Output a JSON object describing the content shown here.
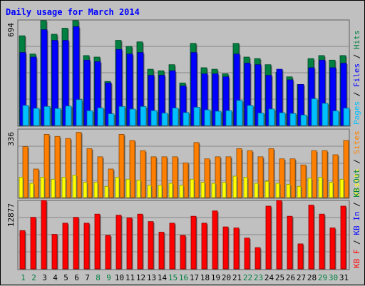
{
  "chart_data": {
    "type": "bar",
    "title": "Daily usage for March 2014",
    "days": [
      "1",
      "2",
      "3",
      "4",
      "5",
      "6",
      "7",
      "8",
      "9",
      "10",
      "11",
      "12",
      "13",
      "14",
      "15",
      "16",
      "17",
      "18",
      "19",
      "20",
      "21",
      "22",
      "23",
      "24",
      "25",
      "26",
      "27",
      "28",
      "29",
      "30",
      "31"
    ],
    "weekend_days": [
      "1",
      "2",
      "8",
      "9",
      "15",
      "16",
      "22",
      "23",
      "29",
      "30"
    ],
    "panels": [
      {
        "id": "pages-files-hits",
        "max_label": "694",
        "ymax": 694,
        "right_labels": [
          {
            "text": "Pages",
            "color": "#00c0ff"
          },
          {
            "text": " / ",
            "color": "#000000"
          },
          {
            "text": "Files",
            "color": "#0000ff"
          },
          {
            "text": " / ",
            "color": "#000000"
          },
          {
            "text": "Hits",
            "color": "#008040"
          }
        ],
        "series": [
          {
            "name": "Hits",
            "color": "#008040",
            "values": [
              590,
              470,
              690,
              600,
              640,
              690,
              460,
              450,
              290,
              560,
              520,
              550,
              370,
              360,
              400,
              280,
              540,
              380,
              370,
              340,
              540,
              450,
              440,
              400,
              350,
              320,
              270,
              440,
              460,
              430,
              460
            ]
          },
          {
            "name": "Files",
            "color": "#0000ff",
            "values": [
              480,
              450,
              630,
              560,
              560,
              650,
              430,
              420,
              280,
              500,
              470,
              480,
              330,
              330,
              360,
              260,
              480,
              340,
              340,
              320,
              470,
              410,
              400,
              330,
              370,
              300,
              270,
              380,
              430,
              380,
              410
            ]
          },
          {
            "name": "Pages",
            "color": "#00c0ff",
            "values": [
              132,
              113,
              125,
              112,
              128,
              170,
              97,
              116,
              77,
              125,
              108,
              125,
              98,
              82,
              115,
              85,
              120,
              103,
              94,
              98,
              165,
              132,
              82,
              108,
              84,
              79,
              69,
              176,
              146,
              96,
              114
            ]
          }
        ]
      },
      {
        "id": "visits-sites",
        "max_label": "336",
        "ymax": 336,
        "right_labels": [
          {
            "text": "Visits",
            "color": "#ffff00"
          },
          {
            "text": " / ",
            "color": "#000000"
          },
          {
            "text": "Sites",
            "color": "#ff8000"
          }
        ],
        "series": [
          {
            "name": "Sites",
            "color": "#ff8000",
            "values": [
              250,
              140,
              310,
              300,
              290,
              320,
              240,
              200,
              140,
              310,
              280,
              230,
              200,
              200,
              200,
              170,
              270,
              190,
              200,
              200,
              240,
              230,
              200,
              240,
              190,
              190,
              160,
              230,
              230,
              210,
              280
            ]
          },
          {
            "name": "Visits",
            "color": "#ffff00",
            "values": [
              100,
              70,
              100,
              90,
              100,
              110,
              75,
              75,
              55,
              100,
              90,
              85,
              60,
              60,
              70,
              60,
              90,
              75,
              70,
              75,
              105,
              100,
              70,
              80,
              70,
              65,
              55,
              95,
              100,
              75,
              90
            ]
          }
        ]
      },
      {
        "id": "traffic",
        "max_label": "12877",
        "ymax": 12877,
        "right_labels": [
          {
            "text": "KB F",
            "color": "#ff0000"
          },
          {
            "text": " / ",
            "color": "#000000"
          },
          {
            "text": "KB In",
            "color": "#0000ff"
          },
          {
            "text": " / ",
            "color": "#000000"
          },
          {
            "text": "KB Out",
            "color": "#008040"
          }
        ],
        "series": [
          {
            "name": "KB F",
            "color": "#ff0000",
            "values": [
              7200,
              9700,
              12877,
              6500,
              8600,
              9700,
              8600,
              10300,
              6300,
              10100,
              9600,
              10300,
              8900,
              6900,
              8600,
              6300,
              9900,
              8600,
              10900,
              7900,
              7700,
              5800,
              4000,
              11800,
              12877,
              9900,
              4700,
              12000,
              10300,
              7700,
              11800
            ]
          }
        ]
      }
    ]
  }
}
